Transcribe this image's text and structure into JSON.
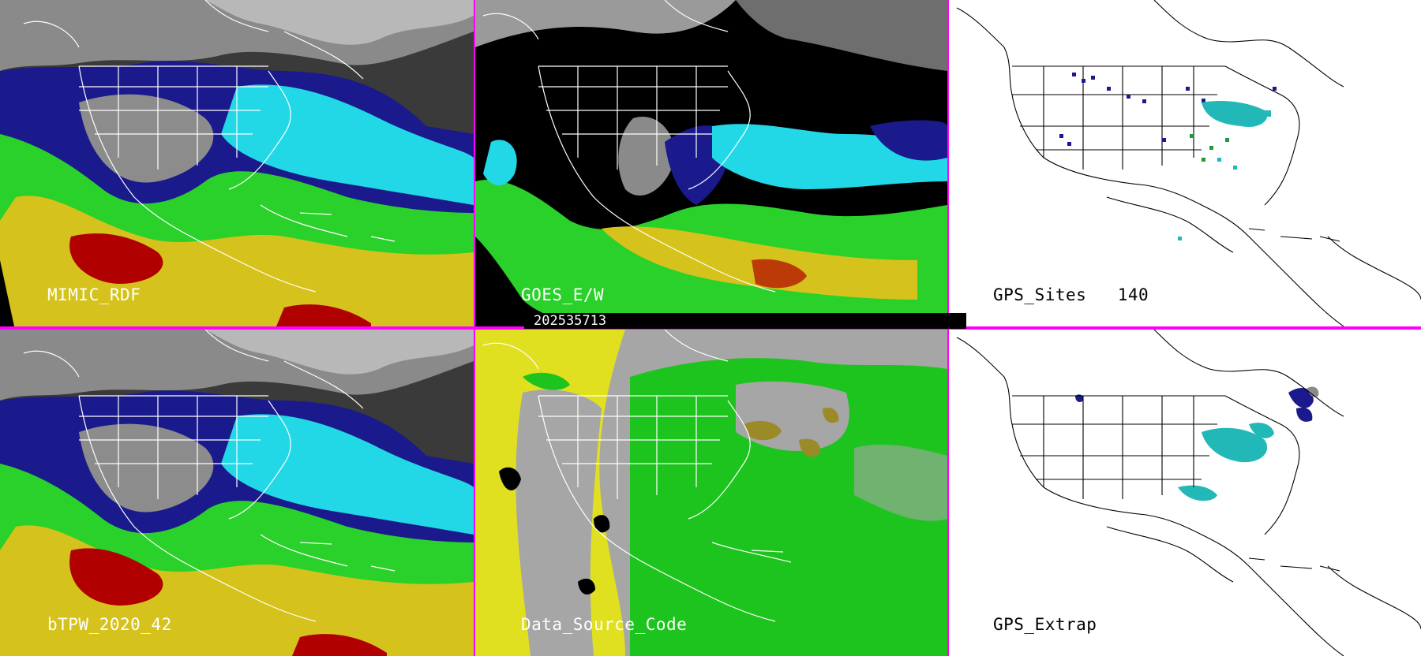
{
  "panels": {
    "mimic": {
      "label": "MIMIC_RDF"
    },
    "goes": {
      "label": "GOES_E/W"
    },
    "gps_sites": {
      "label": "GPS_Sites",
      "count": "140"
    },
    "btpw": {
      "label": "bTPW_2020_42"
    },
    "source": {
      "label": "Data_Source_Code"
    },
    "gps_extrap": {
      "label": "GPS_Extrap"
    }
  },
  "timestamp": "202535713",
  "colors": {
    "separator": "#ff00ff",
    "tpw_dry": "#1a1a8c",
    "tpw_cyan": "#22d8e6",
    "tpw_green": "#2ad12a",
    "tpw_yellow": "#d6c21c",
    "tpw_red": "#b00000",
    "source_grey": "#a6a6a6",
    "source_green": "#1ec41e",
    "source_yellow": "#e0e020",
    "source_olive": "#9b8a28"
  }
}
